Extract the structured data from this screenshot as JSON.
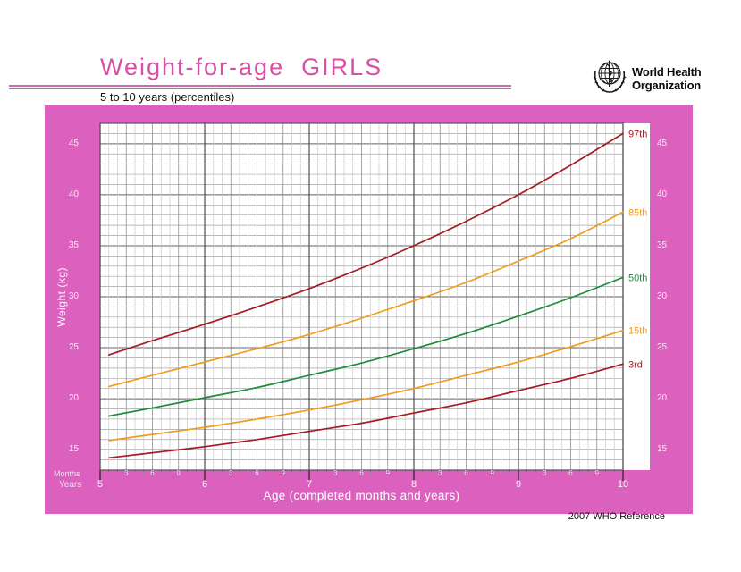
{
  "header": {
    "title": "Weight-for-age  GIRLS",
    "subtitle": "5 to 10 years (percentiles)",
    "logo": {
      "line1": "World Health",
      "line2": "Organization"
    }
  },
  "footer": {
    "reference": "2007 WHO Reference"
  },
  "colors": {
    "panel_pink": "#dc60be",
    "title_pink": "#d94fa3",
    "percentile_red": "#a61c24",
    "percentile_orange": "#f09c1e",
    "percentile_green": "#1f8c3c"
  },
  "chart_data": {
    "type": "line",
    "title": "Weight-for-age GIRLS",
    "subtitle": "5 to 10 years (percentiles)",
    "xlabel": "Age (completed months and years)",
    "ylabel": "Weight (kg)",
    "months_caption": "Months",
    "years_caption": "Years",
    "x_unit": "months",
    "xlim": [
      60,
      120
    ],
    "ylim": [
      13,
      47
    ],
    "yticks": [
      15,
      20,
      25,
      30,
      35,
      40,
      45
    ],
    "year_ticks": [
      60,
      72,
      84,
      96,
      108,
      120
    ],
    "year_labels": [
      "5",
      "6",
      "7",
      "8",
      "9",
      "10"
    ],
    "month_sublabels": [
      "3",
      "6",
      "9"
    ],
    "grid": true,
    "legend_position": "right of curve ends",
    "x": [
      61,
      66,
      72,
      78,
      84,
      90,
      96,
      102,
      108,
      114,
      120
    ],
    "series": [
      {
        "name": "97th",
        "color": "#a61c24",
        "values": [
          24.3,
          25.7,
          27.3,
          29.0,
          30.8,
          32.8,
          35.0,
          37.4,
          40.0,
          42.9,
          46.0
        ]
      },
      {
        "name": "85th",
        "color": "#f09c1e",
        "values": [
          21.2,
          22.3,
          23.6,
          24.9,
          26.3,
          27.9,
          29.6,
          31.4,
          33.5,
          35.7,
          38.3
        ]
      },
      {
        "name": "50th",
        "color": "#1f8c3c",
        "values": [
          18.3,
          19.1,
          20.1,
          21.1,
          22.3,
          23.5,
          24.9,
          26.4,
          28.1,
          29.9,
          31.9
        ]
      },
      {
        "name": "15th",
        "color": "#f09c1e",
        "values": [
          15.9,
          16.5,
          17.2,
          18.0,
          18.9,
          19.9,
          21.0,
          22.3,
          23.6,
          25.1,
          26.7
        ]
      },
      {
        "name": "3rd",
        "color": "#a61c24",
        "values": [
          14.2,
          14.7,
          15.3,
          16.0,
          16.8,
          17.6,
          18.6,
          19.6,
          20.8,
          22.0,
          23.4
        ]
      }
    ]
  }
}
